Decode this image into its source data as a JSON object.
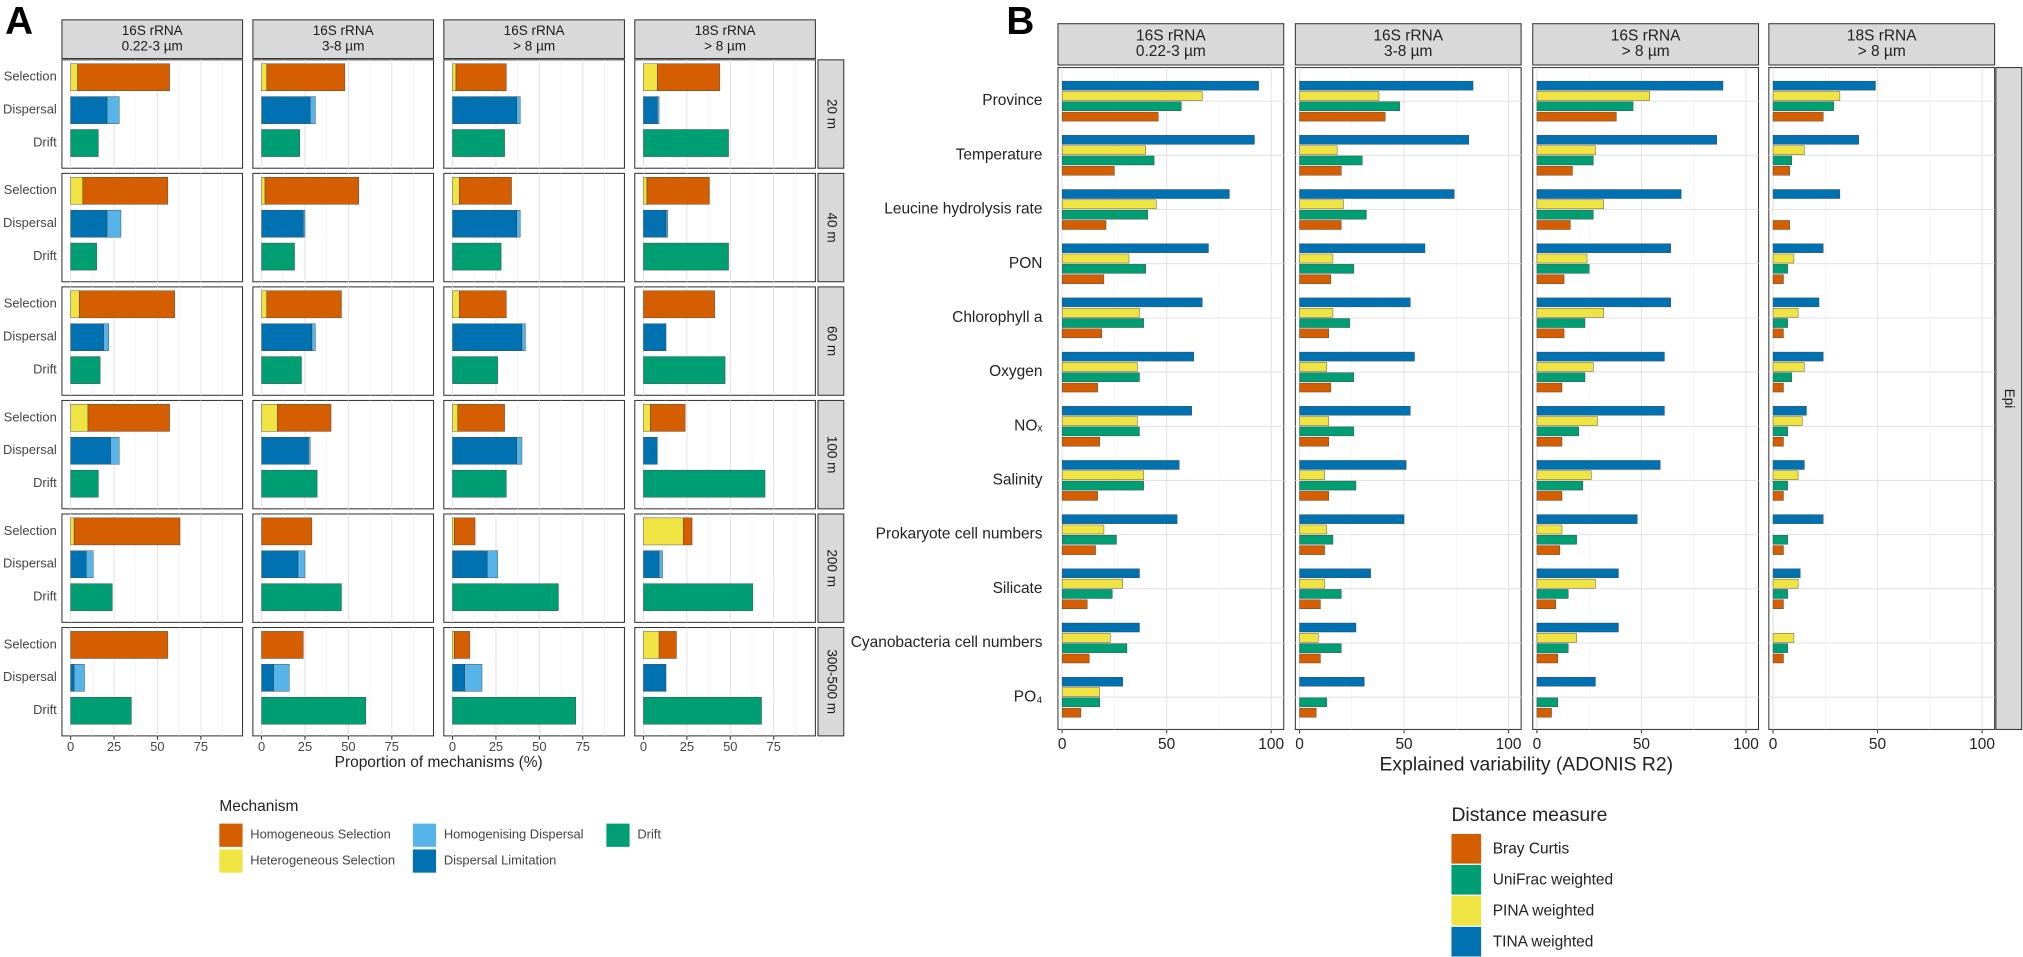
{
  "chart_data": [
    {
      "type": "faceted_stacked_bar",
      "panel_label": "A",
      "columns": [
        [
          "16S rRNA",
          "0.22-3 µm"
        ],
        [
          "16S rRNA",
          "3-8 µm"
        ],
        [
          "16S rRNA",
          "> 8 µm"
        ],
        [
          "18S rRNA",
          "> 8 µm"
        ]
      ],
      "rows": [
        "20 m",
        "40 m",
        "60 m",
        "100 m",
        "200 m",
        "300-500 m"
      ],
      "categories": [
        {
          "name": "Selection",
          "series": [
            {
              "name": "Homogeneous Selection",
              "color": "#D55E00",
              "values": [
                [
                  53,
                  45,
                  29,
                  36
                ],
                [
                  49,
                  54,
                  30,
                  36
                ],
                [
                  55,
                  43,
                  27,
                  41
                ],
                [
                  47,
                  31,
                  27,
                  20
                ],
                [
                  61,
                  29,
                  12,
                  5
                ],
                [
                  56,
                  24,
                  9,
                  10
                ]
              ]
            },
            {
              "name": "Heterogeneous Selection",
              "color": "#F0E442",
              "values": [
                [
                  4,
                  3,
                  2,
                  8
                ],
                [
                  7,
                  2,
                  4,
                  2
                ],
                [
                  5,
                  3,
                  4,
                  0
                ],
                [
                  10,
                  9,
                  3,
                  4
                ],
                [
                  2,
                  0,
                  1,
                  23
                ],
                [
                  0,
                  0,
                  1,
                  9
                ]
              ]
            }
          ]
        },
        {
          "name": "Dispersal",
          "series": [
            {
              "name": "Homogenising Dispersal",
              "color": "#56B4E9",
              "values": [
                [
                  7,
                  3,
                  2,
                  1
                ],
                [
                  8,
                  1,
                  2,
                  1
                ],
                [
                  3,
                  2,
                  2,
                  0
                ],
                [
                  5,
                  1,
                  3,
                  0
                ],
                [
                  4,
                  4,
                  6,
                  2
                ],
                [
                  6,
                  9,
                  10,
                  0
                ]
              ]
            },
            {
              "name": "Dispersal Limitation",
              "color": "#0072B2",
              "values": [
                [
                  21,
                  28,
                  37,
                  8
                ],
                [
                  21,
                  24,
                  37,
                  13
                ],
                [
                  19,
                  29,
                  40,
                  13
                ],
                [
                  23,
                  27,
                  37,
                  8
                ],
                [
                  9,
                  21,
                  20,
                  9
                ],
                [
                  2,
                  7,
                  7,
                  13
                ]
              ]
            }
          ]
        },
        {
          "name": "Drift",
          "series": [
            {
              "name": "Drift",
              "color": "#009E73",
              "values": [
                [
                  16,
                  22,
                  30,
                  49
                ],
                [
                  15,
                  19,
                  28,
                  49
                ],
                [
                  17,
                  23,
                  26,
                  47
                ],
                [
                  16,
                  32,
                  31,
                  70
                ],
                [
                  24,
                  46,
                  61,
                  63
                ],
                [
                  35,
                  60,
                  71,
                  68
                ]
              ]
            }
          ]
        }
      ],
      "legend_title": "Mechanism",
      "xlabel": "Proportion of mechanisms (%)",
      "xlim": [
        -5,
        99
      ],
      "xticks": [
        0,
        25,
        50,
        75
      ],
      "xminor": [
        12.5,
        37.5,
        62.5,
        87.5
      ],
      "grid": true
    },
    {
      "type": "faceted_grouped_bar",
      "panel_label": "B",
      "columns": [
        [
          "16S rRNA",
          "0.22-3 µm"
        ],
        [
          "16S rRNA",
          "3-8 µm"
        ],
        [
          "16S rRNA",
          "> 8 µm"
        ],
        [
          "18S rRNA",
          "> 8 µm"
        ]
      ],
      "row_strip": "Epi",
      "categories": [
        "Province",
        "Temperature",
        "Leucine hydrolysis rate",
        "PON",
        "Chlorophyll a",
        "Oxygen",
        "NOₓ",
        "Salinity",
        "Prokaryote cell numbers",
        "Silicate",
        "Cyanobacteria cell numbers",
        "PO₄"
      ],
      "series": [
        {
          "name": "Bray Curtis",
          "color": "#D55E00",
          "values": [
            [
              46,
              25,
              21,
              20,
              19,
              17,
              18,
              17,
              16,
              12,
              13,
              9
            ],
            [
              41,
              20,
              20,
              15,
              14,
              15,
              14,
              14,
              12,
              10,
              10,
              8
            ],
            [
              38,
              17,
              16,
              13,
              13,
              12,
              12,
              12,
              11,
              9,
              10,
              7
            ],
            [
              24,
              8,
              8,
              5,
              5,
              5,
              5,
              5,
              5,
              5,
              5,
              0
            ]
          ]
        },
        {
          "name": "UniFrac weighted",
          "color": "#009E73",
          "values": [
            [
              57,
              44,
              41,
              40,
              39,
              37,
              37,
              39,
              26,
              24,
              31,
              18
            ],
            [
              48,
              30,
              32,
              26,
              24,
              26,
              26,
              27,
              16,
              20,
              20,
              13
            ],
            [
              46,
              27,
              27,
              25,
              23,
              23,
              20,
              22,
              19,
              15,
              15,
              10
            ],
            [
              29,
              9,
              0,
              7,
              7,
              9,
              7,
              7,
              7,
              7,
              7,
              0
            ]
          ]
        },
        {
          "name": "PINA weighted",
          "color": "#F0E442",
          "values": [
            [
              67,
              40,
              45,
              32,
              37,
              36,
              36,
              39,
              20,
              29,
              23,
              18
            ],
            [
              38,
              18,
              21,
              16,
              16,
              13,
              14,
              12,
              13,
              12,
              9,
              0
            ],
            [
              54,
              28,
              32,
              24,
              32,
              27,
              29,
              26,
              12,
              28,
              19,
              0
            ],
            [
              32,
              15,
              0,
              10,
              12,
              15,
              14,
              12,
              0,
              12,
              10,
              0
            ]
          ]
        },
        {
          "name": "TINA weighted",
          "color": "#0072B2",
          "values": [
            [
              94,
              92,
              80,
              70,
              67,
              63,
              62,
              56,
              55,
              37,
              37,
              29
            ],
            [
              83,
              81,
              74,
              60,
              53,
              55,
              53,
              51,
              50,
              34,
              27,
              31
            ],
            [
              89,
              86,
              69,
              64,
              64,
              61,
              61,
              59,
              48,
              39,
              39,
              28
            ],
            [
              49,
              41,
              32,
              24,
              22,
              24,
              16,
              15,
              24,
              13,
              0,
              0
            ]
          ]
        }
      ],
      "legend_title": "Distance measure",
      "xlabel": "Explained variability (ADONIS R2)",
      "xlim": [
        -2,
        106
      ],
      "xticks": [
        0,
        50,
        100
      ],
      "xminor": [
        25,
        75
      ],
      "grid": true
    }
  ]
}
